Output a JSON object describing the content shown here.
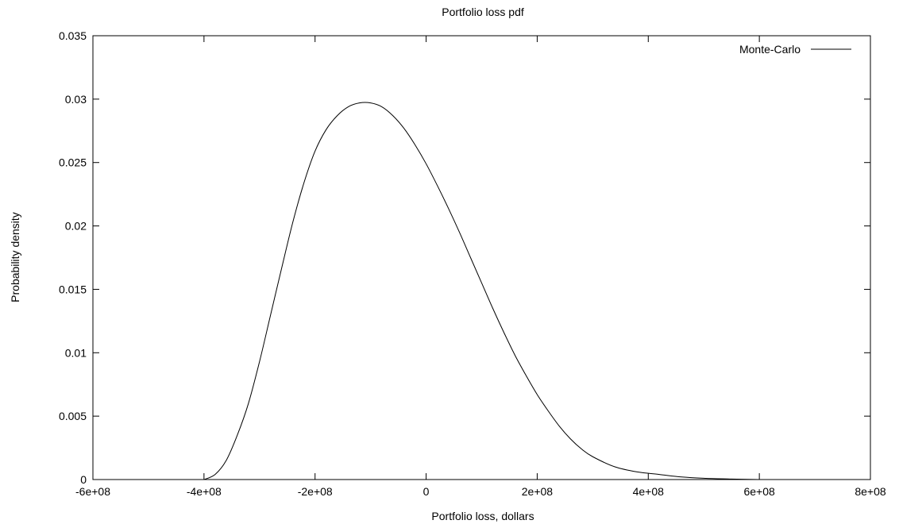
{
  "chart_data": {
    "type": "line",
    "title": "Portfolio loss pdf",
    "xlabel": "Portfolio loss, dollars",
    "ylabel": "Probability density",
    "xlim": [
      -600000000,
      800000000
    ],
    "ylim": [
      0,
      0.035
    ],
    "xticks": [
      -600000000,
      -400000000,
      -200000000,
      0,
      200000000,
      400000000,
      600000000,
      800000000
    ],
    "xtick_labels": [
      "-6e+08",
      "-4e+08",
      "-2e+08",
      "0",
      "2e+08",
      "4e+08",
      "6e+08",
      "8e+08"
    ],
    "yticks": [
      0,
      0.005,
      0.01,
      0.015,
      0.02,
      0.025,
      0.03,
      0.035
    ],
    "ytick_labels": [
      "0",
      "0.005",
      "0.01",
      "0.015",
      "0.02",
      "0.025",
      "0.03",
      "0.035"
    ],
    "grid": false,
    "legend_position": "top-right",
    "series": [
      {
        "name": "Monte-Carlo",
        "color": "#000000",
        "x": [
          -400000000,
          -380000000,
          -360000000,
          -340000000,
          -320000000,
          -300000000,
          -280000000,
          -260000000,
          -240000000,
          -220000000,
          -200000000,
          -180000000,
          -160000000,
          -140000000,
          -120000000,
          -100000000,
          -80000000,
          -60000000,
          -40000000,
          -20000000,
          0,
          20000000,
          40000000,
          60000000,
          80000000,
          100000000,
          120000000,
          140000000,
          160000000,
          180000000,
          200000000,
          220000000,
          240000000,
          260000000,
          280000000,
          300000000,
          340000000,
          380000000,
          420000000,
          460000000,
          500000000,
          550000000,
          600000000
        ],
        "y": [
          0.0,
          0.0004,
          0.0015,
          0.0035,
          0.006,
          0.0093,
          0.013,
          0.0167,
          0.0203,
          0.0234,
          0.0259,
          0.0276,
          0.0287,
          0.0294,
          0.0297,
          0.0297,
          0.0294,
          0.0287,
          0.0277,
          0.0264,
          0.0249,
          0.0232,
          0.0214,
          0.0195,
          0.0175,
          0.0155,
          0.0135,
          0.0116,
          0.0098,
          0.0082,
          0.0067,
          0.0054,
          0.0042,
          0.0032,
          0.0024,
          0.0018,
          0.001,
          0.0006,
          0.0004,
          0.0002,
          0.0001,
          4e-05,
          0.0
        ]
      }
    ]
  }
}
